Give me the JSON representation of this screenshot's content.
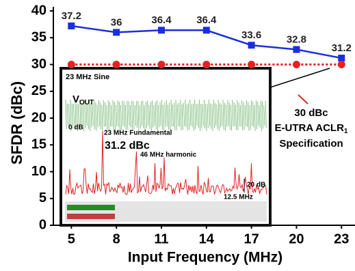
{
  "chart_data": {
    "type": "line",
    "x": [
      5,
      8,
      11,
      14,
      17,
      20,
      23
    ],
    "xlim": [
      3.8,
      23.9
    ],
    "xticks": [
      5,
      8,
      11,
      14,
      17,
      20,
      23
    ],
    "ylim": [
      0,
      40
    ],
    "yticks": [
      0,
      5,
      10,
      15,
      20,
      25,
      30,
      35,
      40
    ],
    "x_label": "Input Frequency (MHz)",
    "y_label": "SFDR (dBc)",
    "series": [
      {
        "color": "#1a2ee0",
        "marker": "square",
        "data_labels": true,
        "values": [
          37.2,
          36,
          36.4,
          36.4,
          33.6,
          32.8,
          31.2
        ]
      },
      {
        "color": "#e52222",
        "marker": "circle",
        "dashed": true,
        "values": [
          30,
          30,
          30,
          30,
          30,
          30,
          30
        ]
      }
    ],
    "annotation": {
      "lines": [
        "30 dBc",
        {
          "text": "E-UTRA ACLR",
          "subscript": "1"
        },
        "Specification"
      ]
    }
  },
  "inset": {
    "title": "23 MHz Sine",
    "vout": {
      "text": "V",
      "subscript": "OUT"
    },
    "labels": [
      "0 dB",
      "23 MHz Fundamental",
      "31.2 dBc",
      "46 MHz harmonic",
      "20 dB",
      "12.5 MHz"
    ]
  }
}
